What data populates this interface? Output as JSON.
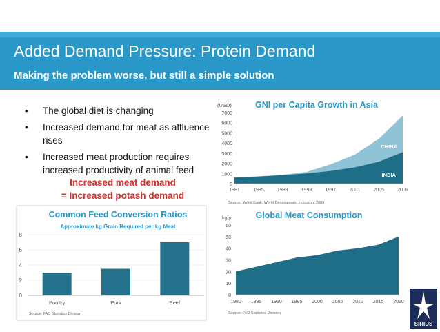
{
  "slide": {
    "title": "Added Demand Pressure: Protein Demand",
    "subtitle": "Making the problem worse, but still a simple solution"
  },
  "bullets": [
    "The global diet is changing",
    "Increased demand for meat as affluence rises",
    "Increased meat production requires increased productivity of animal feed"
  ],
  "highlight": {
    "line1": "Increased meat demand",
    "line2": "= Increased potash demand"
  },
  "logo": {
    "text": "SIRIUS"
  },
  "colors": {
    "banner": "#2a97c9",
    "bar": "#23718a",
    "area_dark": "#1f6e88",
    "area_light": "#8fc3d6",
    "highlight": "#d3302a"
  },
  "chart_data": [
    {
      "type": "area",
      "title": "GNI per Capita Growth in Asia",
      "ylabel": "(USD)",
      "ylim": [
        0,
        7000
      ],
      "yticks": [
        "0",
        "1000",
        "2000",
        "3000",
        "4000",
        "5000",
        "6000",
        "7000"
      ],
      "xlim": [
        1981,
        2009
      ],
      "xticks": [
        "1981",
        "1985",
        "1989",
        "1993",
        "1997",
        "2001",
        "2005",
        "2009"
      ],
      "x": [
        1981,
        1985,
        1989,
        1993,
        1997,
        2001,
        2005,
        2009
      ],
      "series": [
        {
          "name": "INDIA",
          "values": [
            600,
            700,
            830,
            1000,
            1250,
            1600,
            2150,
            3100
          ]
        },
        {
          "name": "CHINA",
          "values": [
            620,
            720,
            870,
            1150,
            1900,
            2850,
            4400,
            6700
          ]
        }
      ],
      "source": "Source: World Bank, World Development Indicators 2009"
    },
    {
      "type": "bar",
      "title": "Common Feed Conversion Ratios",
      "subtitle": "Approximate kg Grain Required per kg Meat",
      "categories": [
        "Poultry",
        "Pork",
        "Beef"
      ],
      "values": [
        3,
        3.5,
        7
      ],
      "ylim": [
        0,
        8
      ],
      "yticks": [
        "0",
        "2",
        "4",
        "6",
        "8"
      ],
      "source": "Source: FAO Statistics Division"
    },
    {
      "type": "area",
      "title": "Global Meat Consumption",
      "ylabel": "kg/p",
      "ylim": [
        0,
        60
      ],
      "yticks": [
        "0",
        "10",
        "20",
        "30",
        "40",
        "50",
        "60"
      ],
      "xlim": [
        1980,
        2020
      ],
      "xticks": [
        "1980",
        "1985",
        "1990",
        "1995",
        "2000",
        "2005",
        "2010",
        "2015",
        "2020"
      ],
      "x": [
        1980,
        1985,
        1990,
        1995,
        2000,
        2005,
        2010,
        2015,
        2020
      ],
      "series": [
        {
          "name": "Meat consumption",
          "values": [
            20,
            24,
            28,
            32,
            34,
            38,
            40,
            43,
            50
          ]
        }
      ],
      "source": "Source: FAO Statistics Division"
    }
  ]
}
